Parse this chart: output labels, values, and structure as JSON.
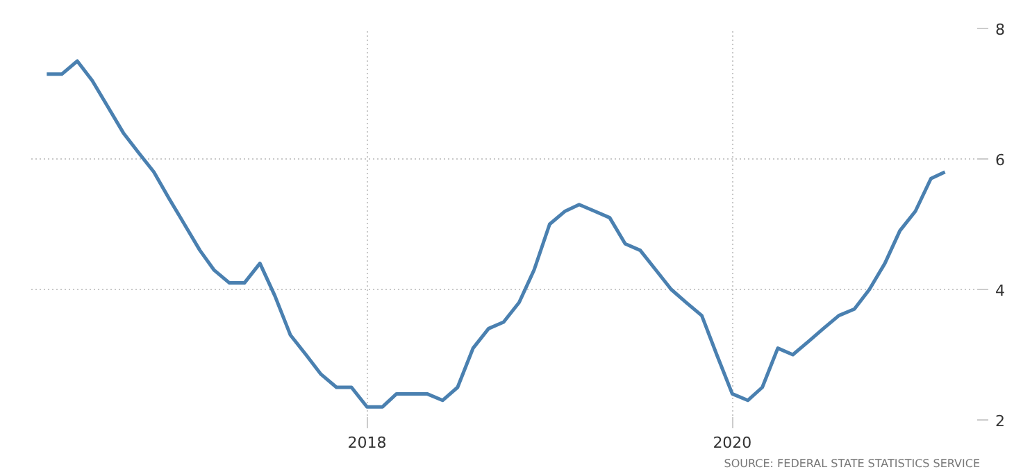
{
  "chart_data": {
    "type": "line",
    "x": [
      "2016-04",
      "2016-05",
      "2016-06",
      "2016-07",
      "2016-08",
      "2016-09",
      "2016-10",
      "2016-11",
      "2016-12",
      "2017-01",
      "2017-02",
      "2017-03",
      "2017-04",
      "2017-05",
      "2017-06",
      "2017-07",
      "2017-08",
      "2017-09",
      "2017-10",
      "2017-11",
      "2017-12",
      "2018-01",
      "2018-02",
      "2018-03",
      "2018-04",
      "2018-05",
      "2018-06",
      "2018-07",
      "2018-08",
      "2018-09",
      "2018-10",
      "2018-11",
      "2018-12",
      "2019-01",
      "2019-02",
      "2019-03",
      "2019-04",
      "2019-05",
      "2019-06",
      "2019-07",
      "2019-08",
      "2019-09",
      "2019-10",
      "2019-11",
      "2019-12",
      "2020-01",
      "2020-02",
      "2020-03",
      "2020-04",
      "2020-05",
      "2020-06",
      "2020-07",
      "2020-08",
      "2020-09",
      "2020-10",
      "2020-11",
      "2020-12",
      "2021-01",
      "2021-02",
      "2021-03"
    ],
    "series": [
      {
        "color": "#4a80b0",
        "values": [
          7.3,
          7.3,
          7.5,
          7.2,
          6.8,
          6.4,
          6.1,
          5.8,
          5.4,
          5.0,
          4.6,
          4.3,
          4.1,
          4.1,
          4.4,
          3.9,
          3.3,
          3.0,
          2.7,
          2.5,
          2.5,
          2.2,
          2.2,
          2.4,
          2.4,
          2.4,
          2.3,
          2.5,
          3.1,
          3.4,
          3.5,
          3.8,
          4.3,
          5.0,
          5.2,
          5.3,
          5.2,
          5.1,
          4.7,
          4.6,
          4.3,
          4.0,
          3.8,
          3.6,
          3.0,
          2.4,
          2.3,
          2.5,
          3.1,
          3.0,
          3.2,
          3.4,
          3.6,
          3.7,
          4.0,
          4.4,
          4.9,
          5.2,
          5.7,
          5.8
        ]
      }
    ],
    "xlim": [
      "2016-03-01",
      "2021-05-10"
    ],
    "xticks": [
      {
        "value": "2018-01-01",
        "label": "2018"
      },
      {
        "value": "2020-01-01",
        "label": "2020"
      }
    ],
    "ylim": [
      2,
      8
    ],
    "yticks": [
      2,
      4,
      6,
      8
    ],
    "grid": true,
    "annotations": [
      "SOURCE: FEDERAL STATE STATISTICS SERVICE"
    ]
  }
}
